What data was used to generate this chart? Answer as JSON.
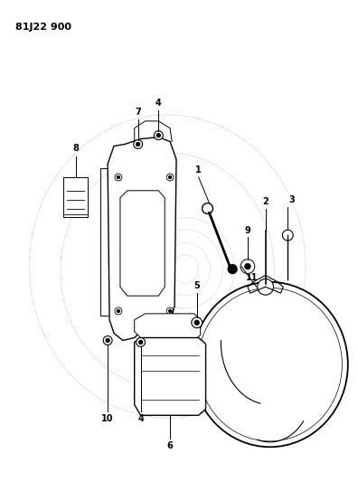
{
  "title": "81J22 900",
  "bg": "#ffffff",
  "lc": "#000000",
  "gray": "#aaaaaa",
  "fig_w": 3.96,
  "fig_h": 5.33,
  "dpi": 100
}
